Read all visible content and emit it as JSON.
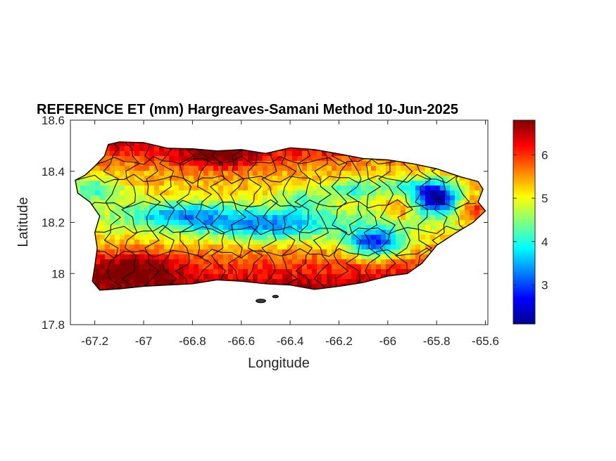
{
  "chart_data": {
    "type": "heatmap",
    "title": "REFERENCE ET (mm) Hargreaves-Samani Method  10-Jun-2025",
    "xlabel": "Longitude",
    "ylabel": "Latitude",
    "xlim": [
      -67.3,
      -65.59
    ],
    "ylim": [
      17.8,
      18.6
    ],
    "xticks": [
      -67.2,
      -67,
      -66.8,
      -66.6,
      -66.4,
      -66.2,
      -66,
      -65.8,
      -65.6
    ],
    "xtick_labels": [
      "-67.2",
      "-67",
      "-66.8",
      "-66.6",
      "-66.4",
      "-66.2",
      "-66",
      "-65.8",
      "-65.6"
    ],
    "yticks": [
      17.8,
      18,
      18.2,
      18.4,
      18.6
    ],
    "ytick_labels": [
      "17.8",
      "18",
      "18.2",
      "18.4",
      "18.6"
    ],
    "colorbar": {
      "colormap": "jet",
      "range": [
        2.1,
        6.8
      ],
      "ticks": [
        3,
        4,
        5,
        6
      ],
      "tick_labels": [
        "3",
        "4",
        "5",
        "6"
      ]
    },
    "grid": false,
    "value_field": {
      "base": 5.4,
      "south_gradient": 1.2,
      "north_coast": 0.9,
      "features": [
        {
          "lon": -66.5,
          "lat": 18.19,
          "rlon": 0.28,
          "rlat": 0.06,
          "delta": -1.6
        },
        {
          "lon": -66.86,
          "lat": 18.23,
          "rlon": 0.2,
          "rlat": 0.05,
          "delta": -1.3
        },
        {
          "lon": -67.2,
          "lat": 18.33,
          "rlon": 0.12,
          "rlat": 0.05,
          "delta": -1.2
        },
        {
          "lon": -66.05,
          "lat": 18.12,
          "rlon": 0.12,
          "rlat": 0.06,
          "delta": -2.4
        },
        {
          "lon": -65.8,
          "lat": 18.3,
          "rlon": 0.09,
          "rlat": 0.06,
          "delta": -3.0
        },
        {
          "lon": -65.93,
          "lat": 18.34,
          "rlon": 0.12,
          "rlat": 0.04,
          "delta": -1.1
        },
        {
          "lon": -66.15,
          "lat": 18.33,
          "rlon": 0.1,
          "rlat": 0.04,
          "delta": -1.3
        },
        {
          "lon": -66.35,
          "lat": 18.3,
          "rlon": 0.1,
          "rlat": 0.04,
          "delta": -0.9
        },
        {
          "lon": -66.7,
          "lat": 18.45,
          "rlon": 0.18,
          "rlat": 0.05,
          "delta": 1.0
        },
        {
          "lon": -67.05,
          "lat": 18.02,
          "rlon": 0.18,
          "rlat": 0.06,
          "delta": 1.0
        },
        {
          "lon": -65.65,
          "lat": 18.24,
          "rlon": 0.06,
          "rlat": 0.05,
          "delta": 1.3
        },
        {
          "lon": -65.95,
          "lat": 18.25,
          "rlon": 0.06,
          "rlat": 0.04,
          "delta": 0.8
        }
      ]
    }
  }
}
